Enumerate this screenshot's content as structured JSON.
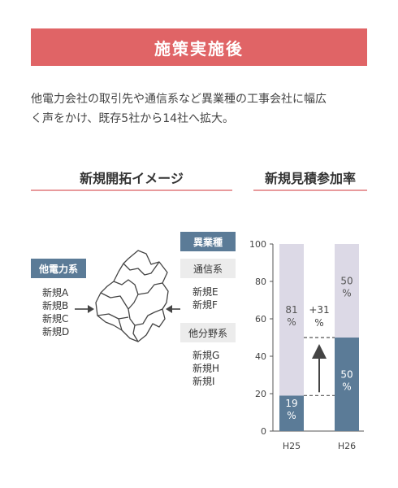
{
  "banner": {
    "title": "施策実施後"
  },
  "description": {
    "line1": "他電力会社の取引先や通信系など異業種の工事会社に幅広",
    "line2": "く声をかけ、既存5社から14社へ拡大。"
  },
  "left_section": {
    "title": "新規開拓イメージ",
    "group_label": "他電力系",
    "group_items": [
      "新規A",
      "新規B",
      "新規C",
      "新規D"
    ],
    "right_header": "異業種",
    "tsushin_label": "通信系",
    "tsushin_items": [
      "新規E",
      "新規F"
    ],
    "tabunya_label": "他分野系",
    "tabunya_items": [
      "新規G",
      "新規H",
      "新規I"
    ]
  },
  "right_section": {
    "title": "新規見積参加率"
  },
  "chart_data": {
    "type": "bar",
    "stacked": true,
    "categories": [
      "H25",
      "H26"
    ],
    "series": [
      {
        "values": [
          19,
          50
        ],
        "labels": [
          "19\n%",
          "50\n%"
        ],
        "color": "#5b7b97"
      },
      {
        "values": [
          81,
          50
        ],
        "labels": [
          "81\n%",
          "50\n%"
        ],
        "color": "#dcd9e6"
      }
    ],
    "yticks": [
      0,
      20,
      40,
      60,
      80,
      100
    ],
    "ylim": [
      0,
      100
    ],
    "annotation": {
      "text_top": "+31",
      "text_bottom": "%"
    }
  },
  "colors": {
    "accent": "#e06466",
    "bar_dark": "#5b7b97",
    "bar_light": "#dcd9e6"
  }
}
